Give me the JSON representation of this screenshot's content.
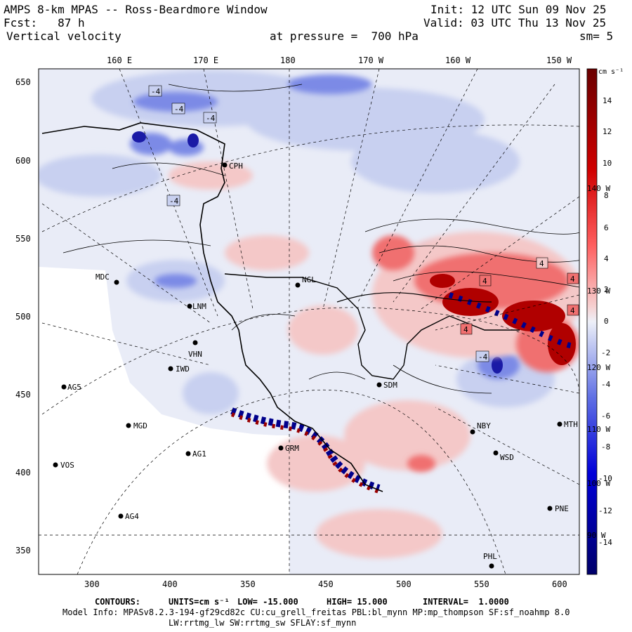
{
  "header": {
    "title": "AMPS 8-km MPAS -- Ross-Beardmore Window",
    "forecast": "Fcst:   87 h",
    "field": "Vertical velocity",
    "init": "Init: 12 UTC Sun 09 Nov 25",
    "valid": "Valid: 03 UTC Thu 13 Nov 25",
    "pressure": "at pressure =  700 hPa",
    "smoothing": "sm= 5"
  },
  "top_axis_labels": [
    "160 E",
    "170 E",
    "180",
    "170 W",
    "160 W",
    "150 W"
  ],
  "left_axis_ticks": [
    "650",
    "600",
    "550",
    "500",
    "450",
    "400",
    "350"
  ],
  "bottom_axis_ticks": [
    "300",
    "350",
    "400",
    "450",
    "500",
    "550",
    "600"
  ],
  "colorbar": {
    "units": "cm s⁻¹",
    "ticks": [
      "14",
      "12",
      "10",
      "8",
      "6",
      "4",
      "2",
      "0",
      "-2",
      "-4",
      "-6",
      "-8",
      "-10",
      "-12",
      "-14"
    ],
    "colors": {
      "strong_up": "#7a0000",
      "mid_up": "#ff2a2a",
      "weak_up": "#f4c8c8",
      "neutral": "#e9ecf7",
      "weak_down": "#c8d0f0",
      "mid_down": "#5a6ee0",
      "strong_down": "#00008c"
    }
  },
  "longitude_edge_labels": [
    "140 W",
    "130 W",
    "120 W",
    "110 W",
    "100 W",
    "90 W"
  ],
  "stations": [
    {
      "code": "CPH"
    },
    {
      "code": "MDC"
    },
    {
      "code": "NGL"
    },
    {
      "code": "LNM"
    },
    {
      "code": "VHN"
    },
    {
      "code": "IWD"
    },
    {
      "code": "AG5"
    },
    {
      "code": "SDM"
    },
    {
      "code": "MGD"
    },
    {
      "code": "AG1"
    },
    {
      "code": "VOS"
    },
    {
      "code": "GRM"
    },
    {
      "code": "NBY"
    },
    {
      "code": "MTH"
    },
    {
      "code": "WSD"
    },
    {
      "code": "AG4"
    },
    {
      "code": "PNE"
    },
    {
      "code": "PHL"
    }
  ],
  "contour_labels": [
    "-4",
    "-4",
    "-4",
    "4",
    "4",
    "4",
    "4",
    "-4",
    "-4",
    "4"
  ],
  "footer": {
    "contours_label": "CONTOURS:",
    "units": "UNITS=cm s⁻¹",
    "low": "LOW= -15.000",
    "high": "HIGH= 15.000",
    "interval": "INTERVAL=  1.0000",
    "model_info": "Model Info: MPASv8.2.3-194-gf29cd82c CU:cu_grell_freitas PBL:bl_mynn MP:mp_thompson SF:sf_noahmp 8.0",
    "model_info2": "LW:rrtmg_lw SW:rrtmg_sw SFLAY:sf_mynn"
  }
}
